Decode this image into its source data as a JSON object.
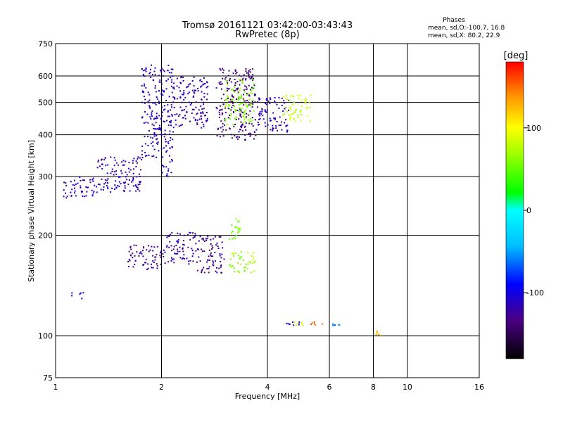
{
  "chart_data": {
    "type": "scatter",
    "title": "Tromsø 20161121 03:42:00-03:43:43",
    "subtitle": "RwPretec (8p)",
    "xlabel": "Frequency [MHz]",
    "ylabel": "Stationary phase Virtual Height [km]",
    "x_scale": "log",
    "y_scale": "log",
    "xlim": [
      1,
      16
    ],
    "ylim": [
      75,
      750
    ],
    "x_ticks": [
      1,
      2,
      4,
      6,
      8,
      10,
      16
    ],
    "x_tick_labels": [
      "1",
      "2",
      "4",
      "6",
      "8",
      "10",
      "16"
    ],
    "y_ticks": [
      75,
      100,
      200,
      300,
      400,
      500,
      600,
      750
    ],
    "y_tick_labels": [
      "75",
      "100",
      "200",
      "300",
      "400",
      "500",
      "600",
      "750"
    ],
    "grid": true,
    "legend_position": "top-right",
    "stats": {
      "heading": "Phases",
      "line1": "mean, sd,O:-100.7, 16.8",
      "line2": "mean, sd,X:  80.2, 22.9"
    },
    "colorbar": {
      "label": "[deg]",
      "range": [
        -180,
        180
      ],
      "ticks": [
        100,
        0,
        -100
      ],
      "tick_labels": [
        "100",
        "0",
        "-100"
      ],
      "colormap": "rainbow"
    },
    "series": [
      {
        "clusters": [
          {
            "x": [
              1.05,
              1.3
            ],
            "y": [
              260,
              300
            ],
            "phase": -115
          },
          {
            "x": [
              1.3,
              1.75
            ],
            "y": [
              270,
              345
            ],
            "phase": -115
          },
          {
            "x": [
              1.75,
              2.0
            ],
            "y": [
              340,
              650
            ],
            "phase": -112
          },
          {
            "x": [
              2.0,
              2.15
            ],
            "y": [
              300,
              650
            ],
            "phase": -112
          },
          {
            "x": [
              2.15,
              2.7
            ],
            "y": [
              420,
              600
            ],
            "phase": -118
          },
          {
            "x": [
              2.85,
              3.7
            ],
            "y": [
              385,
              640
            ],
            "phase": -135
          },
          {
            "x": [
              3.0,
              3.65
            ],
            "y": [
              430,
              590
            ],
            "phase": 60
          },
          {
            "x": [
              3.7,
              4.6
            ],
            "y": [
              410,
              520
            ],
            "phase": -115
          },
          {
            "x": [
              4.4,
              5.3
            ],
            "y": [
              440,
              530
            ],
            "phase": 80
          },
          {
            "x": [
              1.6,
              2.05
            ],
            "y": [
              158,
              188
            ],
            "phase": -128
          },
          {
            "x": [
              2.05,
              2.5
            ],
            "y": [
              165,
              205
            ],
            "phase": -120
          },
          {
            "x": [
              2.5,
              3.0
            ],
            "y": [
              155,
              200
            ],
            "phase": -130
          },
          {
            "x": [
              3.1,
              3.7
            ],
            "y": [
              155,
              180
            ],
            "phase": 65
          },
          {
            "x": [
              3.1,
              3.4
            ],
            "y": [
              195,
              225
            ],
            "phase": 55
          },
          {
            "x": [
              1.1,
              1.2
            ],
            "y": [
              130,
              136
            ],
            "phase": -105
          },
          {
            "x": [
              4.5,
              5.5
            ],
            "y": [
              108,
              111
            ],
            "phase": -100
          },
          {
            "x": [
              4.6,
              5.1
            ],
            "y": [
              108,
              111
            ],
            "phase": 90
          },
          {
            "x": [
              5.2,
              5.8
            ],
            "y": [
              108,
              111
            ],
            "phase": 150
          },
          {
            "x": [
              6.0,
              6.6
            ],
            "y": [
              108,
              111
            ],
            "phase": -60
          },
          {
            "x": [
              8.0,
              8.4
            ],
            "y": [
              100,
              104
            ],
            "phase": 130
          }
        ]
      }
    ]
  }
}
